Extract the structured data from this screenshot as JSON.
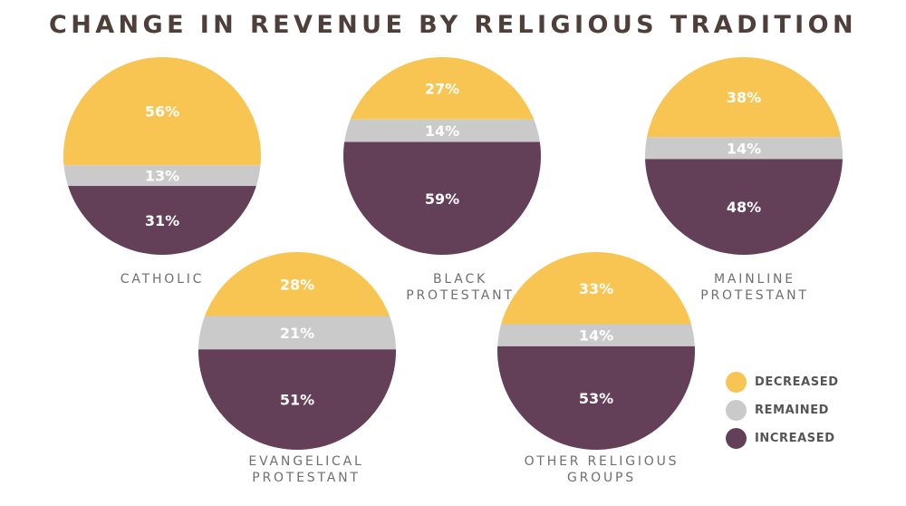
{
  "chart_data": {
    "type": "pie",
    "title": "CHANGE IN REVENUE BY RELIGIOUS TRADITION",
    "categories": [
      "DECREASED",
      "REMAINED",
      "INCREASED"
    ],
    "colors": [
      "#f9c552",
      "#cacaca",
      "#643f58"
    ],
    "pies": [
      {
        "name": "CATHOLIC",
        "values": [
          56,
          13,
          31
        ],
        "labels": [
          "56%",
          "13%",
          "31%"
        ]
      },
      {
        "name": "BLACK\nPROTESTANT",
        "values": [
          27,
          14,
          59
        ],
        "labels": [
          "27%",
          "14%",
          "59%"
        ]
      },
      {
        "name": "MAINLINE\nPROTESTANT",
        "values": [
          38,
          14,
          48
        ],
        "labels": [
          "38%",
          "14%",
          "48%"
        ]
      },
      {
        "name": "EVANGELICAL\nPROTESTANT",
        "values": [
          28,
          21,
          51
        ],
        "labels": [
          "28%",
          "21%",
          "51%"
        ]
      },
      {
        "name": "OTHER RELIGIOUS\nGROUPS",
        "values": [
          33,
          14,
          53
        ],
        "labels": [
          "33%",
          "14%",
          "53%"
        ]
      }
    ],
    "legend": {
      "position": "bottom-right"
    }
  }
}
